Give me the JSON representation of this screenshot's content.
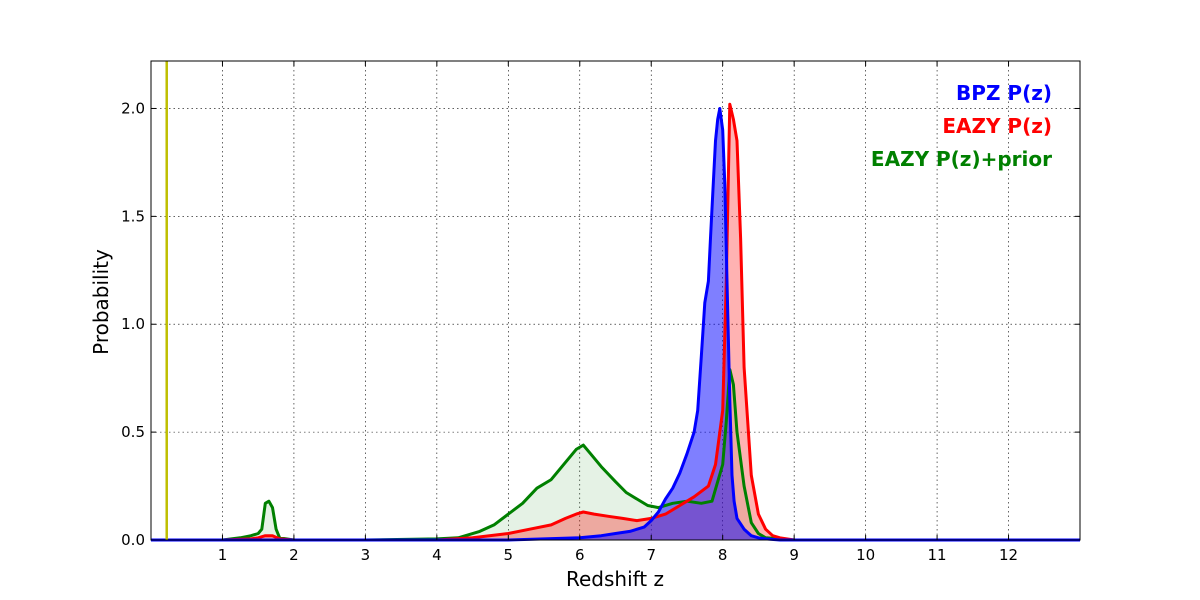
{
  "chart_data": {
    "type": "area",
    "xlabel": "Redshift z",
    "ylabel": "Probability",
    "xlim": [
      0,
      13
    ],
    "ylim": [
      0,
      2.22
    ],
    "grid": true,
    "legend_placement": "top-right",
    "x_ticks": [
      "1",
      "2",
      "3",
      "4",
      "5",
      "6",
      "7",
      "8",
      "9",
      "10",
      "11",
      "12"
    ],
    "x_tick_values": [
      1,
      2,
      3,
      4,
      5,
      6,
      7,
      8,
      9,
      10,
      11,
      12
    ],
    "y_ticks": [
      "0.0",
      "0.5",
      "1.0",
      "1.5",
      "2.0"
    ],
    "y_tick_values": [
      0,
      0.5,
      1.0,
      1.5,
      2.0
    ],
    "vertical_line": {
      "x": 0.22,
      "color": "#bfbf00"
    },
    "series": [
      {
        "name": "EAZY P(z)+prior",
        "color": "#008000",
        "fill_color": "#008000",
        "fill_opacity": 0.1,
        "x": [
          0.0,
          1.0,
          1.25,
          1.4,
          1.5,
          1.55,
          1.6,
          1.65,
          1.7,
          1.75,
          1.8,
          2.0,
          3.0,
          4.0,
          4.3,
          4.6,
          4.8,
          5.0,
          5.2,
          5.4,
          5.6,
          5.8,
          5.95,
          6.05,
          6.15,
          6.3,
          6.5,
          6.65,
          6.8,
          6.95,
          7.1,
          7.3,
          7.5,
          7.7,
          7.85,
          8.0,
          8.05,
          8.1,
          8.15,
          8.2,
          8.3,
          8.4,
          8.5,
          8.6,
          8.8,
          9.0,
          10.0,
          11.0,
          12.0,
          13.0
        ],
        "y": [
          0.0,
          0.0,
          0.01,
          0.02,
          0.03,
          0.05,
          0.17,
          0.18,
          0.15,
          0.05,
          0.01,
          0.0,
          0.0,
          0.005,
          0.01,
          0.04,
          0.07,
          0.12,
          0.17,
          0.24,
          0.28,
          0.36,
          0.42,
          0.44,
          0.4,
          0.34,
          0.27,
          0.22,
          0.19,
          0.16,
          0.15,
          0.17,
          0.18,
          0.17,
          0.18,
          0.35,
          0.55,
          0.79,
          0.72,
          0.5,
          0.25,
          0.08,
          0.03,
          0.01,
          0.005,
          0.0,
          0.0,
          0.0,
          0.0,
          0.0
        ]
      },
      {
        "name": "EAZY P(z)",
        "color": "#ff0000",
        "fill_color": "#ff0000",
        "fill_opacity": 0.3,
        "x": [
          0.0,
          1.0,
          1.4,
          1.5,
          1.6,
          1.7,
          1.8,
          2.0,
          3.0,
          4.0,
          4.5,
          5.0,
          5.3,
          5.6,
          5.8,
          5.95,
          6.05,
          6.2,
          6.4,
          6.6,
          6.8,
          7.0,
          7.2,
          7.4,
          7.6,
          7.8,
          7.9,
          8.0,
          8.05,
          8.1,
          8.15,
          8.2,
          8.25,
          8.3,
          8.4,
          8.5,
          8.6,
          8.7,
          8.8,
          9.0,
          10.0,
          11.0,
          12.0,
          13.0
        ],
        "y": [
          0.0,
          0.0,
          0.005,
          0.01,
          0.02,
          0.02,
          0.005,
          0.0,
          0.0,
          0.0,
          0.01,
          0.03,
          0.05,
          0.07,
          0.1,
          0.12,
          0.13,
          0.12,
          0.11,
          0.1,
          0.09,
          0.1,
          0.12,
          0.16,
          0.2,
          0.25,
          0.35,
          0.6,
          1.2,
          2.02,
          1.95,
          1.85,
          1.4,
          0.8,
          0.3,
          0.12,
          0.05,
          0.02,
          0.01,
          0.0,
          0.0,
          0.0,
          0.0,
          0.0
        ]
      },
      {
        "name": "BPZ P(z)",
        "color": "#0000ff",
        "fill_color": "#0000ff",
        "fill_opacity": 0.5,
        "x": [
          0.0,
          4.0,
          5.0,
          5.5,
          6.0,
          6.3,
          6.5,
          6.7,
          6.9,
          7.0,
          7.1,
          7.2,
          7.3,
          7.4,
          7.5,
          7.6,
          7.65,
          7.7,
          7.75,
          7.8,
          7.83,
          7.86,
          7.9,
          7.93,
          7.96,
          8.0,
          8.03,
          8.06,
          8.1,
          8.13,
          8.16,
          8.2,
          8.3,
          8.4,
          8.5,
          8.6,
          8.8,
          9.0,
          10.0,
          11.0,
          12.0,
          13.0
        ],
        "y": [
          0.0,
          0.0,
          0.0,
          0.005,
          0.01,
          0.02,
          0.03,
          0.04,
          0.06,
          0.09,
          0.13,
          0.19,
          0.24,
          0.31,
          0.4,
          0.5,
          0.6,
          0.85,
          1.1,
          1.2,
          1.4,
          1.6,
          1.85,
          1.95,
          2.0,
          1.9,
          1.65,
          1.2,
          0.65,
          0.3,
          0.18,
          0.1,
          0.05,
          0.02,
          0.01,
          0.005,
          0.0,
          0.0,
          0.0,
          0.0,
          0.0,
          0.0
        ]
      }
    ],
    "legend": [
      {
        "label": "BPZ P(z)",
        "color": "#0000ff"
      },
      {
        "label": "EAZY P(z)",
        "color": "#ff0000"
      },
      {
        "label": "EAZY P(z)+prior",
        "color": "#008000"
      }
    ]
  }
}
